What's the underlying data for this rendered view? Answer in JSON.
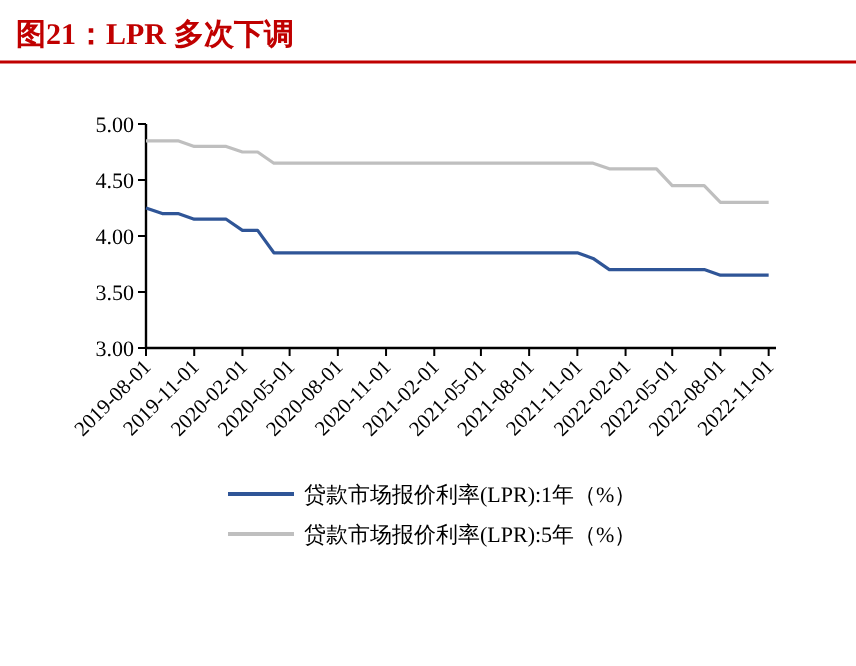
{
  "chart_data": {
    "type": "line",
    "title": "图21：LPR 多次下调",
    "x": [
      "2019-08",
      "2019-09",
      "2019-10",
      "2019-11",
      "2019-12",
      "2020-01",
      "2020-02",
      "2020-03",
      "2020-04",
      "2020-05",
      "2020-06",
      "2020-07",
      "2020-08",
      "2020-09",
      "2020-10",
      "2020-11",
      "2020-12",
      "2021-01",
      "2021-02",
      "2021-03",
      "2021-04",
      "2021-05",
      "2021-06",
      "2021-07",
      "2021-08",
      "2021-09",
      "2021-10",
      "2021-11",
      "2021-12",
      "2022-01",
      "2022-02",
      "2022-03",
      "2022-04",
      "2022-05",
      "2022-06",
      "2022-07",
      "2022-08",
      "2022-09",
      "2022-10",
      "2022-11"
    ],
    "series": [
      {
        "name": "贷款市场报价利率(LPR):1年（%）",
        "color": "#2f5597",
        "values": [
          4.25,
          4.2,
          4.2,
          4.15,
          4.15,
          4.15,
          4.05,
          4.05,
          3.85,
          3.85,
          3.85,
          3.85,
          3.85,
          3.85,
          3.85,
          3.85,
          3.85,
          3.85,
          3.85,
          3.85,
          3.85,
          3.85,
          3.85,
          3.85,
          3.85,
          3.85,
          3.85,
          3.85,
          3.8,
          3.7,
          3.7,
          3.7,
          3.7,
          3.7,
          3.7,
          3.7,
          3.65,
          3.65,
          3.65,
          3.65
        ]
      },
      {
        "name": "贷款市场报价利率(LPR):5年（%）",
        "color": "#bfbfbf",
        "values": [
          4.85,
          4.85,
          4.85,
          4.8,
          4.8,
          4.8,
          4.75,
          4.75,
          4.65,
          4.65,
          4.65,
          4.65,
          4.65,
          4.65,
          4.65,
          4.65,
          4.65,
          4.65,
          4.65,
          4.65,
          4.65,
          4.65,
          4.65,
          4.65,
          4.65,
          4.65,
          4.65,
          4.65,
          4.65,
          4.6,
          4.6,
          4.6,
          4.6,
          4.45,
          4.45,
          4.45,
          4.3,
          4.3,
          4.3,
          4.3
        ]
      }
    ],
    "xlim": [
      "2019-08-01",
      "2022-11-15"
    ],
    "xticks": [
      {
        "value": "2019-08-01",
        "label": "2019-08-01"
      },
      {
        "value": "2019-11-01",
        "label": "2019-11-01"
      },
      {
        "value": "2020-02-01",
        "label": "2020-02-01"
      },
      {
        "value": "2020-05-01",
        "label": "2020-05-01"
      },
      {
        "value": "2020-08-01",
        "label": "2020-08-01"
      },
      {
        "value": "2020-11-01",
        "label": "2020-11-01"
      },
      {
        "value": "2021-02-01",
        "label": "2021-02-01"
      },
      {
        "value": "2021-05-01",
        "label": "2021-05-01"
      },
      {
        "value": "2021-08-01",
        "label": "2021-08-01"
      },
      {
        "value": "2021-11-01",
        "label": "2021-11-01"
      },
      {
        "value": "2022-02-01",
        "label": "2022-02-01"
      },
      {
        "value": "2022-05-01",
        "label": "2022-05-01"
      },
      {
        "value": "2022-08-01",
        "label": "2022-08-01"
      },
      {
        "value": "2022-11-01",
        "label": "2022-11-01"
      }
    ],
    "ylim": [
      3.0,
      5.0
    ],
    "yticks": [
      {
        "value": 3.0,
        "label": "3.00"
      },
      {
        "value": 3.5,
        "label": "3.50"
      },
      {
        "value": 4.0,
        "label": "4.00"
      },
      {
        "value": 4.5,
        "label": "4.50"
      },
      {
        "value": 5.0,
        "label": "5.00"
      }
    ],
    "grid": false,
    "legend": "bottom",
    "marker": "none",
    "line_style": "solid"
  }
}
